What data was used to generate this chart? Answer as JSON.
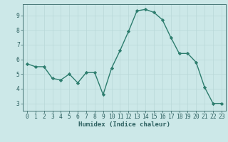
{
  "x": [
    0,
    1,
    2,
    3,
    4,
    5,
    6,
    7,
    8,
    9,
    10,
    11,
    12,
    13,
    14,
    15,
    16,
    17,
    18,
    19,
    20,
    21,
    22,
    23
  ],
  "y": [
    5.7,
    5.5,
    5.5,
    4.7,
    4.6,
    5.0,
    4.4,
    5.1,
    5.1,
    3.6,
    5.4,
    6.6,
    7.9,
    9.3,
    9.4,
    9.2,
    8.7,
    7.5,
    6.4,
    6.4,
    5.8,
    4.1,
    3.0,
    3.0
  ],
  "line_color": "#2d7d6e",
  "marker": "D",
  "markersize": 2.2,
  "linewidth": 1.0,
  "bg_color": "#cce8e8",
  "grid_color": "#b8d8d8",
  "xlabel": "Humidex (Indice chaleur)",
  "ylim": [
    2.5,
    9.75
  ],
  "xlim": [
    -0.5,
    23.5
  ],
  "yticks": [
    3,
    4,
    5,
    6,
    7,
    8,
    9
  ],
  "xticks": [
    0,
    1,
    2,
    3,
    4,
    5,
    6,
    7,
    8,
    9,
    10,
    11,
    12,
    13,
    14,
    15,
    16,
    17,
    18,
    19,
    20,
    21,
    22,
    23
  ],
  "tick_color": "#2d6060",
  "label_fontsize": 6.5,
  "tick_fontsize": 5.8
}
